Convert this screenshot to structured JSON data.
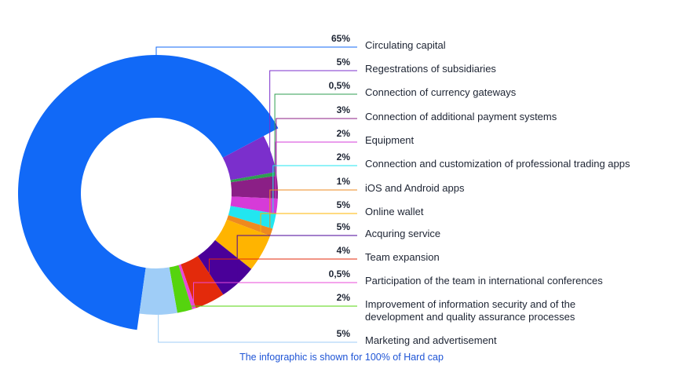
{
  "chart_data": {
    "type": "pie",
    "variant": "donut",
    "legend_position": "right",
    "slices": [
      {
        "label": "Circulating capital",
        "percent_label": "65%",
        "value": 65,
        "color": "#1169f7"
      },
      {
        "label": "Regestrations of subsidiaries",
        "percent_label": "5%",
        "value": 5,
        "color": "#7b2fcc"
      },
      {
        "label": "Connection of currency gateways",
        "percent_label": "0,5%",
        "value": 0.5,
        "color": "#2f9e51"
      },
      {
        "label": "Connection of additional payment systems",
        "percent_label": "3%",
        "value": 3,
        "color": "#8b1f86"
      },
      {
        "label": "Equipment",
        "percent_label": "2%",
        "value": 2,
        "color": "#d63bd8"
      },
      {
        "label": "Connection and customization of professional trading apps",
        "percent_label": "2%",
        "value": 2,
        "color": "#22e6f0"
      },
      {
        "label": "iOS and Android apps",
        "percent_label": "1%",
        "value": 1,
        "color": "#ee8a1f"
      },
      {
        "label": "Online wallet",
        "percent_label": "5%",
        "value": 5,
        "color": "#ffb400"
      },
      {
        "label": "Acquring service",
        "percent_label": "5%",
        "value": 5,
        "color": "#4a0099"
      },
      {
        "label": "Team expansion",
        "percent_label": "4%",
        "value": 4,
        "color": "#e32a0b"
      },
      {
        "label": "Participation of the team in international conferences",
        "percent_label": "0,5%",
        "value": 0.5,
        "color": "#e84ad8"
      },
      {
        "label": "Improvement of information security and of the\ndevelopment and quality assurance processes",
        "percent_label": "2%",
        "value": 2,
        "color": "#55d40e"
      },
      {
        "label": "Marketing and advertisement",
        "percent_label": "5%",
        "value": 5,
        "color": "#9fcdf7"
      }
    ]
  },
  "footnote": "The infographic is shown for 100% of Hard cap"
}
